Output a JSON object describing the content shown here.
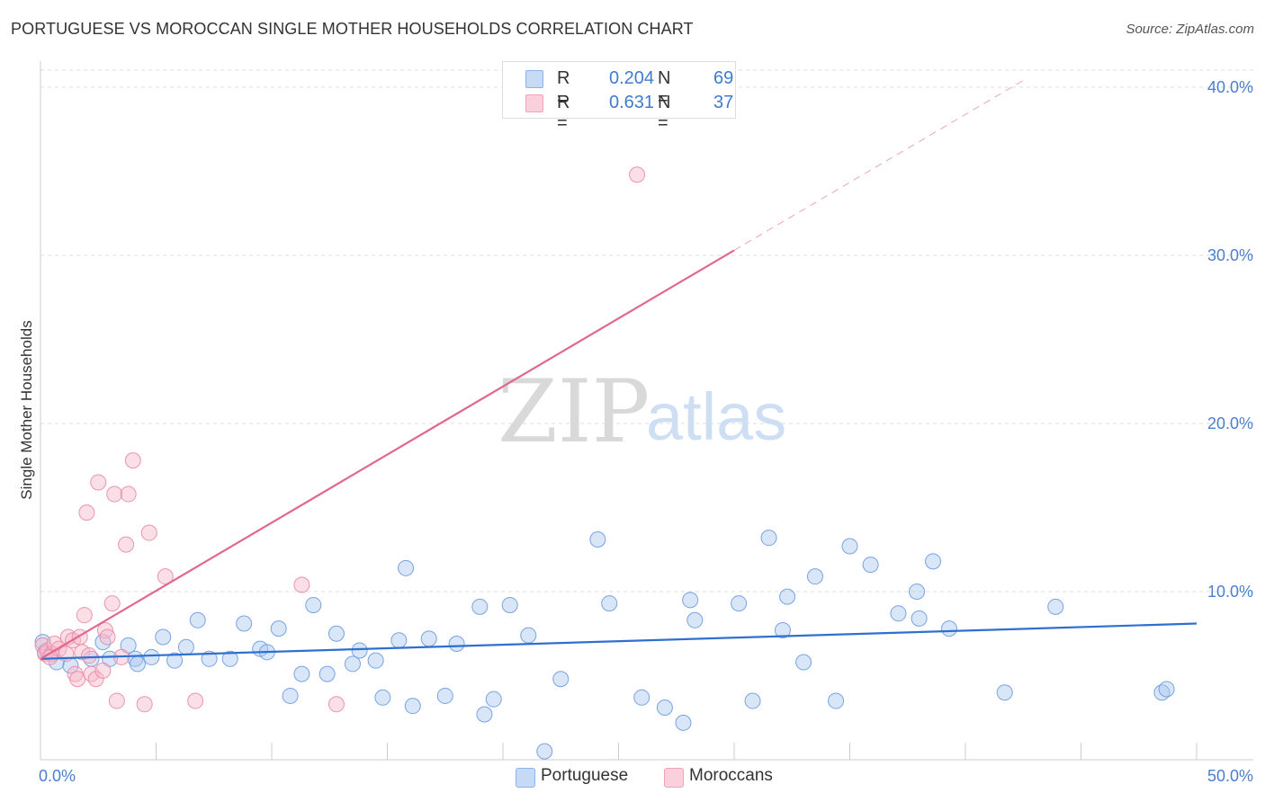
{
  "header": {
    "title": "PORTUGUESE VS MOROCCAN SINGLE MOTHER HOUSEHOLDS CORRELATION CHART",
    "source": "Source: ZipAtlas.com"
  },
  "watermark": {
    "part1": "ZIP",
    "part2": "atlas"
  },
  "legend": {
    "rows": [
      {
        "r_label": "R =",
        "r_value": "0.204",
        "n_label": "N =",
        "n_value": "69",
        "color": "#a9c8f0"
      },
      {
        "r_label": "R =",
        "r_value": "0.631",
        "n_label": "N =",
        "n_value": "37",
        "color": "#f7b7c9"
      }
    ]
  },
  "bottom_legend": {
    "items": [
      {
        "label": "Portuguese",
        "color": "#a9c8f0"
      },
      {
        "label": "Moroccans",
        "color": "#f7b7c9"
      }
    ]
  },
  "chart_data": {
    "type": "scatter",
    "title": "PORTUGUESE VS MOROCCAN SINGLE MOTHER HOUSEHOLDS CORRELATION CHART",
    "xlabel": "",
    "ylabel": "Single Mother Households",
    "xlim": [
      0,
      50
    ],
    "ylim": [
      0,
      40
    ],
    "x_tick_labels": [
      "0.0%",
      "50.0%"
    ],
    "y_ticks": [
      10,
      20,
      30,
      40
    ],
    "y_tick_labels": [
      "10.0%",
      "20.0%",
      "30.0%",
      "40.0%"
    ],
    "grid": true,
    "series": [
      {
        "name": "Portuguese",
        "color": "#a9c8f0",
        "stroke": "#6a9be0",
        "trend_color": "#2f6fd0",
        "trend": {
          "x0": 0,
          "y0": 6.0,
          "x1": 50,
          "y1": 8.1
        },
        "points": [
          [
            0.1,
            7.0
          ],
          [
            0.7,
            5.8
          ],
          [
            1.3,
            5.6
          ],
          [
            2.2,
            6.0
          ],
          [
            2.7,
            7.0
          ],
          [
            3.8,
            6.8
          ],
          [
            4.1,
            6.0
          ],
          [
            4.2,
            5.7
          ],
          [
            4.8,
            6.1
          ],
          [
            5.3,
            7.3
          ],
          [
            5.8,
            5.9
          ],
          [
            6.3,
            6.7
          ],
          [
            6.8,
            8.3
          ],
          [
            7.3,
            6.0
          ],
          [
            8.2,
            6.0
          ],
          [
            8.8,
            8.1
          ],
          [
            9.5,
            6.6
          ],
          [
            9.8,
            6.4
          ],
          [
            10.3,
            7.8
          ],
          [
            10.8,
            3.8
          ],
          [
            11.3,
            5.1
          ],
          [
            11.8,
            9.2
          ],
          [
            12.4,
            5.1
          ],
          [
            12.8,
            7.5
          ],
          [
            13.5,
            5.7
          ],
          [
            13.8,
            6.5
          ],
          [
            14.5,
            5.9
          ],
          [
            14.8,
            3.7
          ],
          [
            15.5,
            7.1
          ],
          [
            15.8,
            11.4
          ],
          [
            16.1,
            3.2
          ],
          [
            16.8,
            7.2
          ],
          [
            17.5,
            3.8
          ],
          [
            18.0,
            6.9
          ],
          [
            19.0,
            9.1
          ],
          [
            19.2,
            2.7
          ],
          [
            19.6,
            3.6
          ],
          [
            20.3,
            9.2
          ],
          [
            21.1,
            7.4
          ],
          [
            21.8,
            0.5
          ],
          [
            22.5,
            4.8
          ],
          [
            24.1,
            13.1
          ],
          [
            24.6,
            9.3
          ],
          [
            26.0,
            3.7
          ],
          [
            27.0,
            3.1
          ],
          [
            27.8,
            2.2
          ],
          [
            28.1,
            9.5
          ],
          [
            28.3,
            8.3
          ],
          [
            30.2,
            9.3
          ],
          [
            30.8,
            3.5
          ],
          [
            31.5,
            13.2
          ],
          [
            32.1,
            7.7
          ],
          [
            32.3,
            9.7
          ],
          [
            33.0,
            5.8
          ],
          [
            33.5,
            10.9
          ],
          [
            34.4,
            3.5
          ],
          [
            35.0,
            12.7
          ],
          [
            35.9,
            11.6
          ],
          [
            37.1,
            8.7
          ],
          [
            37.9,
            10.0
          ],
          [
            38.0,
            8.4
          ],
          [
            38.6,
            11.8
          ],
          [
            39.3,
            7.8
          ],
          [
            41.7,
            4.0
          ],
          [
            43.9,
            9.1
          ],
          [
            48.5,
            4.0
          ],
          [
            48.7,
            4.2
          ],
          [
            0.2,
            6.4
          ],
          [
            3.0,
            6.0
          ]
        ]
      },
      {
        "name": "Moroccans",
        "color": "#f7b7c9",
        "stroke": "#e98aa8",
        "trend_color": "#e2678f",
        "trend": {
          "x0": 0,
          "y0": 6.0,
          "x1": 30,
          "y1": 30.3
        },
        "trend_dashed_to": {
          "x": 42.5,
          "y": 40.4
        },
        "points": [
          [
            0.1,
            6.8
          ],
          [
            0.2,
            6.3
          ],
          [
            0.3,
            6.5
          ],
          [
            0.5,
            6.3
          ],
          [
            0.6,
            6.9
          ],
          [
            0.8,
            6.6
          ],
          [
            1.1,
            6.3
          ],
          [
            1.2,
            7.3
          ],
          [
            1.4,
            7.1
          ],
          [
            1.5,
            5.1
          ],
          [
            1.6,
            4.8
          ],
          [
            1.7,
            7.3
          ],
          [
            1.8,
            6.4
          ],
          [
            1.9,
            8.6
          ],
          [
            2.0,
            14.7
          ],
          [
            2.1,
            6.2
          ],
          [
            2.2,
            5.1
          ],
          [
            2.4,
            4.8
          ],
          [
            2.5,
            16.5
          ],
          [
            2.7,
            5.3
          ],
          [
            2.8,
            7.7
          ],
          [
            2.9,
            7.3
          ],
          [
            3.1,
            9.3
          ],
          [
            3.2,
            15.8
          ],
          [
            3.3,
            3.5
          ],
          [
            3.5,
            6.1
          ],
          [
            3.7,
            12.8
          ],
          [
            3.8,
            15.8
          ],
          [
            4.0,
            17.8
          ],
          [
            4.5,
            3.3
          ],
          [
            4.7,
            13.5
          ],
          [
            5.4,
            10.9
          ],
          [
            6.7,
            3.5
          ],
          [
            11.3,
            10.4
          ],
          [
            12.8,
            3.3
          ],
          [
            25.8,
            34.8
          ],
          [
            0.4,
            6.1
          ]
        ]
      }
    ]
  }
}
